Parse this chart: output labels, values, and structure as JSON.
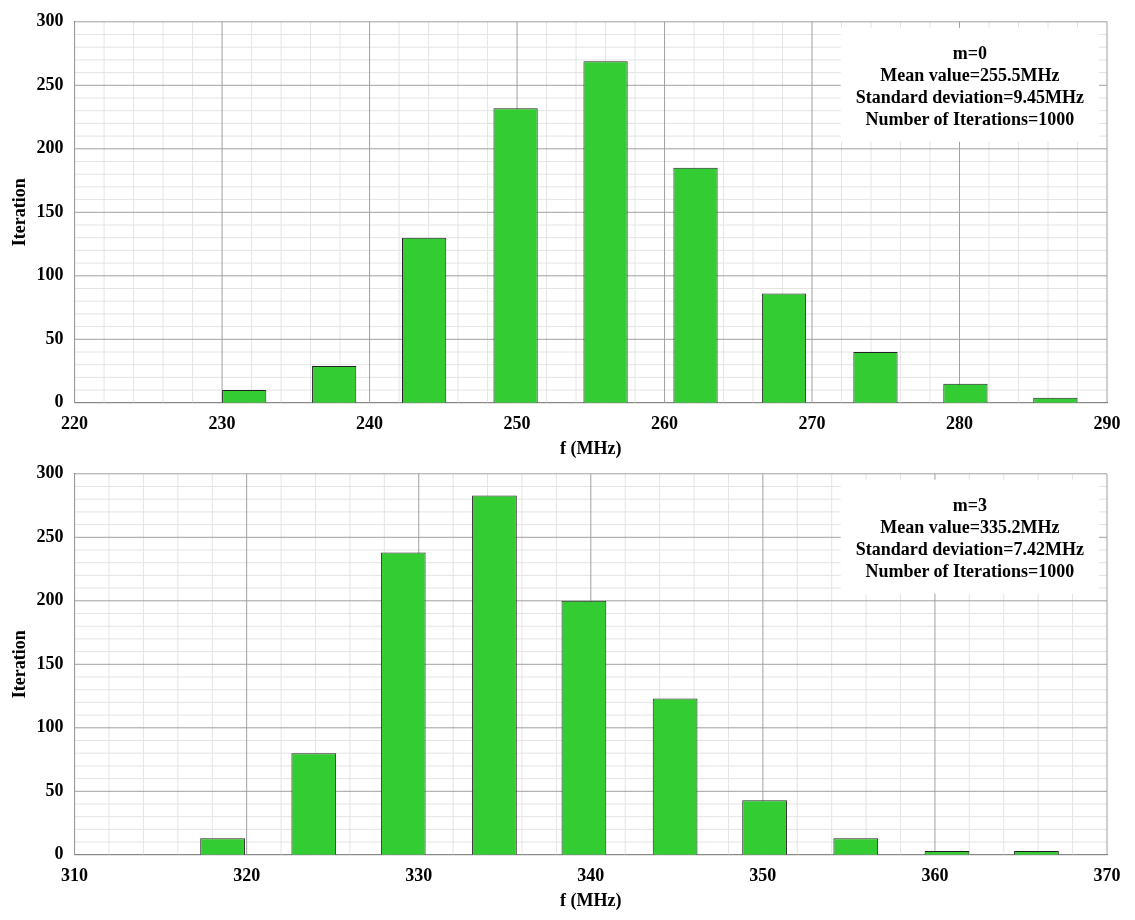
{
  "chart_data": [
    {
      "type": "bar",
      "x": [
        231.5,
        237.6,
        243.7,
        249.9,
        256,
        262.1,
        268.1,
        274.3,
        280.4,
        286.5
      ],
      "values": [
        10,
        29,
        130,
        232,
        269,
        185,
        86,
        40,
        15,
        4
      ],
      "color": "#33cc33",
      "xlim": [
        220,
        290
      ],
      "xticks": [
        220,
        230,
        240,
        250,
        260,
        270,
        280,
        290
      ],
      "ylim": [
        0,
        300
      ],
      "yticks": [
        0,
        50,
        100,
        150,
        200,
        250,
        300
      ],
      "xlabel": "f (MHz)",
      "ylabel": "Iteration",
      "grid": true,
      "legend": false,
      "annotations": [
        "m=0",
        "Mean value=255.5MHz",
        "Standard deviation=9.45MHz",
        "Number of Iterations=1000"
      ]
    },
    {
      "type": "bar",
      "x": [
        318.6,
        323.9,
        329.1,
        334.4,
        339.6,
        344.9,
        350.1,
        355.4,
        360.7,
        365.9
      ],
      "values": [
        13,
        80,
        238,
        283,
        200,
        123,
        43,
        13,
        3,
        3
      ],
      "color": "#33cc33",
      "xlim": [
        310,
        370
      ],
      "xticks": [
        310,
        320,
        330,
        340,
        350,
        360,
        370
      ],
      "ylim": [
        0,
        300
      ],
      "yticks": [
        0,
        50,
        100,
        150,
        200,
        250,
        300
      ],
      "xlabel": "f (MHz)",
      "ylabel": "Iteration",
      "grid": true,
      "legend": false,
      "annotations": [
        "m=3",
        "Mean value=335.2MHz",
        "Standard deviation=7.42MHz",
        "Number of Iterations=1000"
      ]
    }
  ]
}
